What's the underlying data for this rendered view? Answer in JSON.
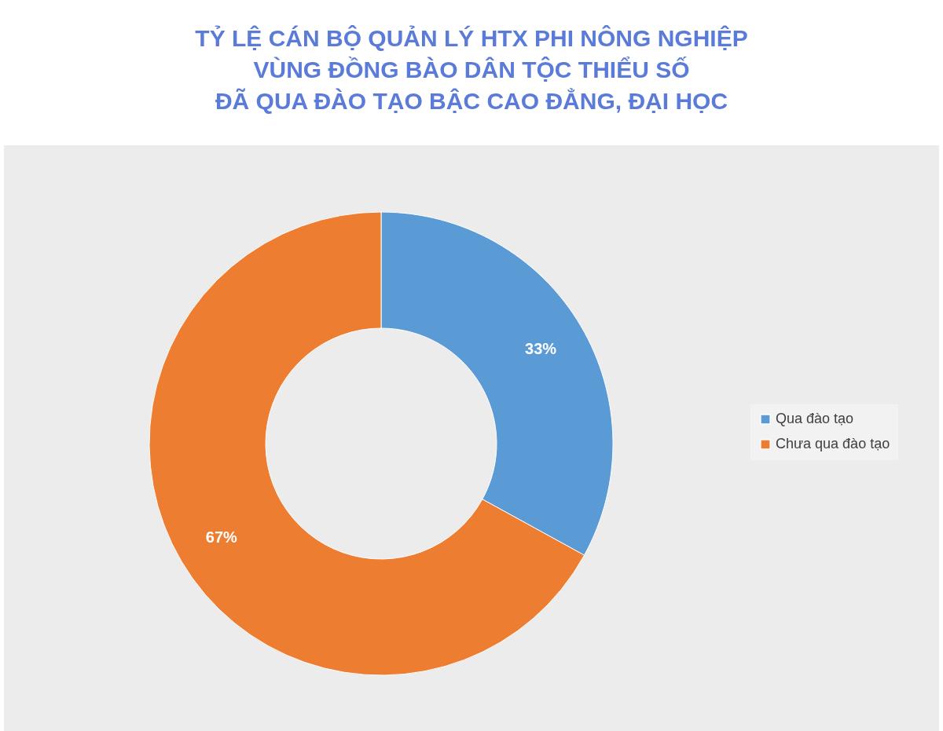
{
  "chart_data": {
    "type": "donut",
    "title": "TỶ LỆ CÁN BỘ QUẢN LÝ HTX PHI NÔNG NGHIỆP\nVÙNG ĐỒNG BÀO DÂN TỘC THIỂU SỐ\nĐÃ QUA ĐÀO TẠO BẬC CAO ĐẲNG, ĐẠI HỌC",
    "categories": [
      "Qua đào tạo",
      "Chưa qua đào tạo"
    ],
    "values": [
      33,
      67
    ],
    "colors": [
      "#5b9bd5",
      "#ed7d31"
    ],
    "value_labels": [
      "33%",
      "67%"
    ],
    "legend": "right"
  }
}
